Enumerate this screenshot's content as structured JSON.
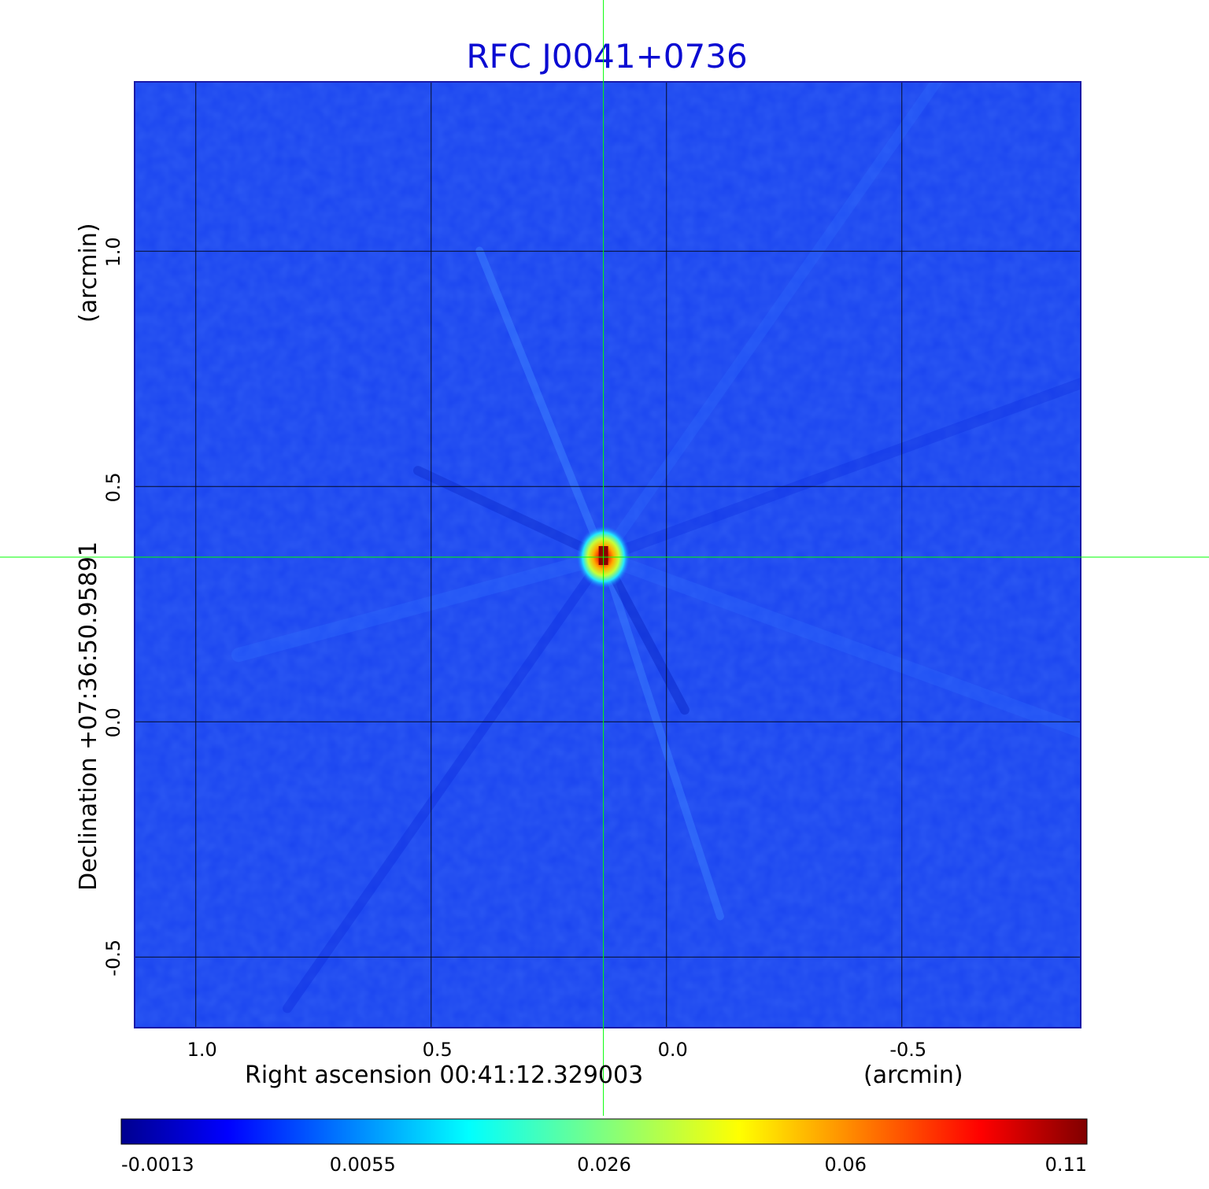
{
  "chart_data": {
    "type": "heatmap",
    "title": "RFC J0041+0736",
    "xlabel": "Right ascension  00:41:12.329003",
    "xunit": "(arcmin)",
    "ylabel": "Declination  +07:36:50.95891",
    "yunit": "(arcmin)",
    "xlim": [
      1.13,
      -0.88
    ],
    "ylim": [
      -0.65,
      1.36
    ],
    "x_ticks": [
      "1.0",
      "0.5",
      "0.0",
      "-0.5"
    ],
    "x_tick_values": [
      1.0,
      0.5,
      0.0,
      -0.5
    ],
    "y_ticks": [
      "1.0",
      "0.5",
      "0.0",
      "-0.5"
    ],
    "y_tick_values": [
      1.0,
      0.5,
      0.0,
      -0.5
    ],
    "grid": true,
    "crosshair": {
      "x": 0.134,
      "y": 0.35,
      "color": "#00ff00"
    },
    "source_peak": {
      "x": 0.134,
      "y": 0.35,
      "value": 0.11
    },
    "background_level": -0.0013,
    "colorbar": {
      "colormap": "jet",
      "ticks": [
        "-0.0013",
        "0.0055",
        "0.026",
        "0.06",
        "0.11"
      ],
      "tick_values": [
        -0.0013,
        0.0055,
        0.026,
        0.06,
        0.11
      ]
    },
    "colors": {
      "title": "#0b0bd2",
      "background_field": "#1a44f0"
    }
  }
}
